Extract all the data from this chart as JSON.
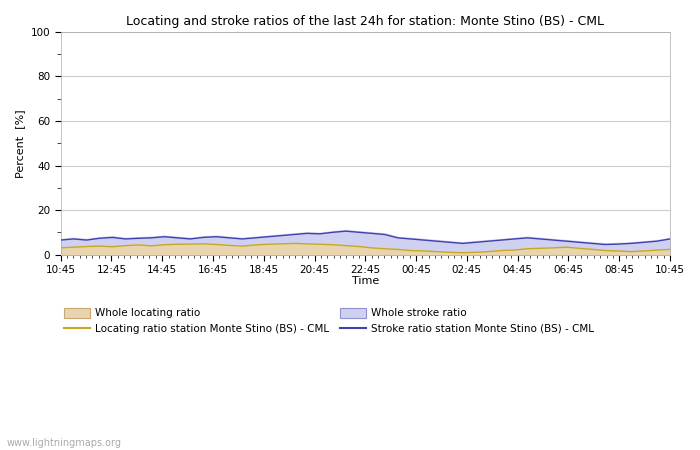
{
  "title": "Locating and stroke ratios of the last 24h for station: Monte Stino (BS) - CML",
  "ylabel": "Percent  [%]",
  "xlabel": "Time",
  "ylim": [
    0,
    100
  ],
  "yticks": [
    0,
    20,
    40,
    60,
    80,
    100
  ],
  "ytick_minor": [
    10,
    30,
    50,
    70,
    90
  ],
  "xtick_labels": [
    "10:45",
    "12:45",
    "14:45",
    "16:45",
    "18:45",
    "20:45",
    "22:45",
    "00:45",
    "02:45",
    "04:45",
    "06:45",
    "08:45",
    "10:45"
  ],
  "background_color": "#ffffff",
  "plot_bg_color": "#ffffff",
  "grid_color": "#cccccc",
  "watermark": "www.lightningmaps.org",
  "whole_locating_fill_color": "#e8d5b0",
  "whole_locating_line_color": "#c8a870",
  "whole_stroke_fill_color": "#d0d0f0",
  "whole_stroke_line_color": "#9090d0",
  "station_locating_line_color": "#c8a820",
  "station_stroke_line_color": "#4040b0",
  "whole_locating_data": [
    3.2,
    3.5,
    3.8,
    4.0,
    3.7,
    4.2,
    4.5,
    4.1,
    4.6,
    4.8,
    4.9,
    5.0,
    4.7,
    4.3,
    4.0,
    4.5,
    4.8,
    5.0,
    5.2,
    5.0,
    4.8,
    4.6,
    4.2,
    3.8,
    3.2,
    2.8,
    2.5,
    2.0,
    1.8,
    1.5,
    1.2,
    1.0,
    1.2,
    1.5,
    2.0,
    2.2,
    2.8,
    3.0,
    3.2,
    3.5,
    3.0,
    2.5,
    2.0,
    1.8,
    1.5,
    1.8,
    2.2,
    2.5
  ],
  "whole_stroke_data": [
    7.0,
    7.5,
    7.0,
    7.8,
    8.2,
    7.5,
    7.8,
    8.0,
    8.5,
    8.0,
    7.5,
    8.2,
    8.5,
    8.0,
    7.5,
    8.0,
    8.5,
    9.0,
    9.5,
    10.0,
    9.8,
    10.5,
    11.0,
    10.5,
    10.0,
    9.5,
    8.0,
    7.5,
    7.0,
    6.5,
    6.0,
    5.5,
    6.0,
    6.5,
    7.0,
    7.5,
    8.0,
    7.5,
    7.0,
    6.5,
    6.0,
    5.5,
    5.0,
    5.2,
    5.5,
    6.0,
    6.5,
    7.5
  ],
  "station_locating_data": [
    3.0,
    3.3,
    3.6,
    3.8,
    3.5,
    4.0,
    4.3,
    3.9,
    4.4,
    4.6,
    4.7,
    4.8,
    4.5,
    4.1,
    3.8,
    4.3,
    4.6,
    4.8,
    5.0,
    4.8,
    4.6,
    4.4,
    4.0,
    3.6,
    3.0,
    2.6,
    2.3,
    1.8,
    1.6,
    1.3,
    1.0,
    0.8,
    1.0,
    1.3,
    1.8,
    2.0,
    2.6,
    2.8,
    3.0,
    3.3,
    2.8,
    2.3,
    1.8,
    1.6,
    1.3,
    1.6,
    2.0,
    2.3
  ],
  "station_stroke_data": [
    6.5,
    7.0,
    6.5,
    7.3,
    7.7,
    7.0,
    7.3,
    7.5,
    8.0,
    7.5,
    7.0,
    7.7,
    8.0,
    7.5,
    7.0,
    7.5,
    8.0,
    8.5,
    9.0,
    9.5,
    9.3,
    10.0,
    10.5,
    10.0,
    9.5,
    9.0,
    7.5,
    7.0,
    6.5,
    6.0,
    5.5,
    5.0,
    5.5,
    6.0,
    6.5,
    7.0,
    7.5,
    7.0,
    6.5,
    6.0,
    5.5,
    5.0,
    4.5,
    4.7,
    5.0,
    5.5,
    6.0,
    7.0
  ]
}
